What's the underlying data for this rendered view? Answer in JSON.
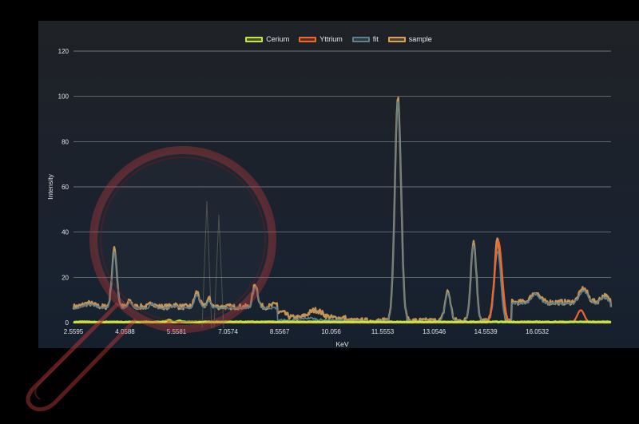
{
  "chart_data": {
    "type": "line",
    "title": "",
    "xlabel": "KeV",
    "ylabel": "Intensity",
    "ylim": [
      0,
      120
    ],
    "yticks": [
      0,
      20,
      40,
      60,
      80,
      100,
      120
    ],
    "xlim": [
      2.5595,
      18.2
    ],
    "xticks": [
      2.5595,
      4.0588,
      5.5581,
      7.0574,
      8.5567,
      10.056,
      11.5553,
      13.0546,
      14.5539,
      16.0532
    ],
    "xtick_labels": [
      "2.5595",
      "4.0588",
      "5.5581",
      "7.0574",
      "8.5567",
      "10.056",
      "11.5553",
      "13.0546",
      "14.5539",
      "16.0532"
    ],
    "grid": "horizontal",
    "legend_position": "top-center",
    "series": [
      {
        "name": "Cerium",
        "color": "#c5e63a",
        "baseline": 0.3,
        "peaks": [
          [
            5.33,
            0.8,
            0.06
          ],
          [
            5.65,
            0.5,
            0.06
          ]
        ]
      },
      {
        "name": "Yttrium",
        "color": "#f0652b",
        "baseline": 0.0,
        "peaks": [
          [
            14.92,
            36,
            0.11
          ],
          [
            17.32,
            5.5,
            0.1
          ]
        ]
      },
      {
        "name": "fit",
        "color": "#5e7f8d",
        "baseline": 6.5,
        "peaks": [
          [
            3.0,
            1.5,
            0.15
          ],
          [
            3.75,
            24.5,
            0.07
          ],
          [
            4.2,
            2.5,
            0.06
          ],
          [
            4.85,
            2.0,
            0.06
          ],
          [
            5.5,
            1.0,
            0.06
          ],
          [
            6.15,
            6.0,
            0.07
          ],
          [
            6.5,
            3.5,
            0.06
          ],
          [
            7.85,
            9.0,
            0.07
          ],
          [
            9.4,
            1.0,
            0.2
          ],
          [
            12.0,
            97.5,
            0.09
          ],
          [
            13.45,
            12.5,
            0.08
          ],
          [
            14.2,
            34.0,
            0.08
          ],
          [
            14.9,
            31.0,
            0.09
          ],
          [
            16.0,
            4.0,
            0.12
          ],
          [
            17.4,
            5.5,
            0.12
          ],
          [
            18.0,
            2.5,
            0.1
          ]
        ],
        "baseline_segments": [
          [
            2.5595,
            8.5,
            6.5
          ],
          [
            8.5,
            10.5,
            1.0
          ],
          [
            10.5,
            15.3,
            0.5
          ],
          [
            15.3,
            18.2,
            8.5
          ]
        ]
      },
      {
        "name": "sample",
        "color": "#d7a15a",
        "baseline": 7.0,
        "peaks": [
          [
            3.0,
            1.5,
            0.15
          ],
          [
            3.75,
            25.5,
            0.07
          ],
          [
            4.2,
            2.5,
            0.06
          ],
          [
            4.85,
            2.0,
            0.06
          ],
          [
            5.5,
            1.0,
            0.06
          ],
          [
            6.15,
            6.5,
            0.07
          ],
          [
            6.5,
            3.5,
            0.06
          ],
          [
            7.85,
            10.0,
            0.07
          ],
          [
            8.6,
            2.5,
            0.15
          ],
          [
            9.6,
            3.5,
            0.2
          ],
          [
            12.0,
            99.0,
            0.09
          ],
          [
            13.45,
            13.0,
            0.08
          ],
          [
            14.2,
            35.0,
            0.08
          ],
          [
            14.9,
            36.0,
            0.09
          ],
          [
            16.0,
            4.5,
            0.12
          ],
          [
            17.4,
            6.0,
            0.12
          ],
          [
            18.0,
            3.0,
            0.1
          ]
        ],
        "baseline_segments": [
          [
            2.5595,
            8.5,
            7.0
          ],
          [
            8.5,
            10.5,
            2.0
          ],
          [
            10.5,
            15.3,
            0.8
          ],
          [
            15.3,
            18.2,
            9.0
          ]
        ]
      }
    ]
  }
}
